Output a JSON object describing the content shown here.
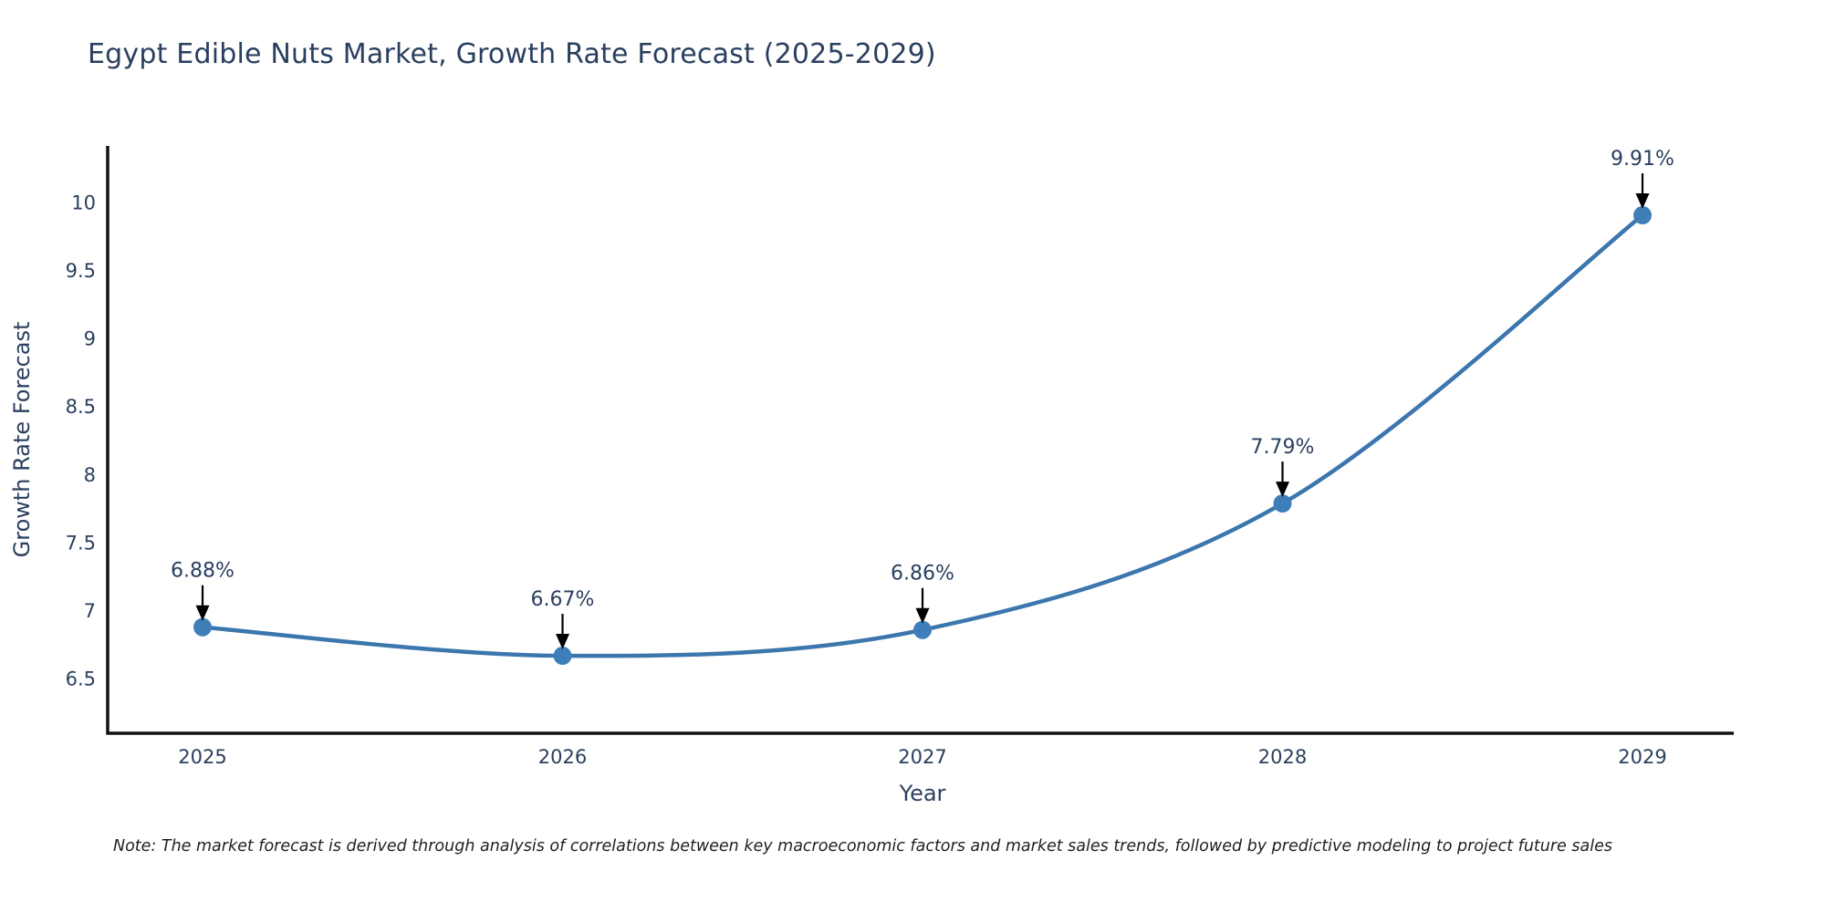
{
  "note": "Note: The market forecast is derived through analysis of correlations between key macroeconomic factors and market sales trends, followed by predictive modeling to project future sales",
  "chart_data": {
    "type": "line",
    "title": "Egypt Edible Nuts Market, Growth Rate Forecast (2025-2029)",
    "xlabel": "Year",
    "ylabel": "Growth Rate Forecast",
    "categories": [
      "2025",
      "2026",
      "2027",
      "2028",
      "2029"
    ],
    "values": [
      6.88,
      6.67,
      6.86,
      7.79,
      9.91
    ],
    "point_labels": [
      "6.88%",
      "6.67%",
      "6.86%",
      "7.79%",
      "9.91%"
    ],
    "yticks": [
      "6.5",
      "7",
      "7.5",
      "8",
      "8.5",
      "9",
      "9.5",
      "10"
    ],
    "ytick_values": [
      6.5,
      7,
      7.5,
      8,
      8.5,
      9,
      9.5,
      10
    ],
    "ylim": [
      6.1,
      10.42
    ],
    "grid": false,
    "legend_position": "none",
    "line_shape": "spline",
    "colors": {
      "line": "#3b76ad",
      "marker": "#3f7fb9",
      "arrow": "#000000",
      "text": "#2a3f5f",
      "axis": "#111111",
      "background": "#ffffff"
    }
  }
}
